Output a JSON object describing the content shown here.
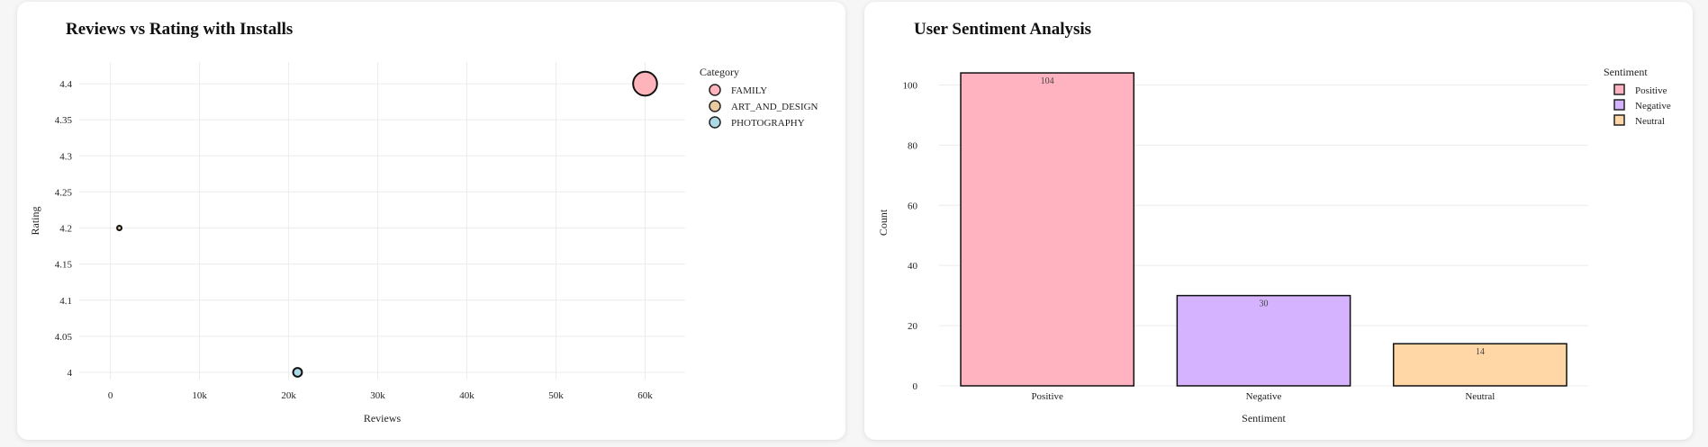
{
  "chart_data": [
    {
      "type": "scatter",
      "title": "Reviews vs Rating with Installs",
      "xlabel": "Reviews",
      "ylabel": "Rating",
      "xlim": [
        -3500,
        64500
      ],
      "ylim": [
        3.99,
        4.43
      ],
      "xticks": [
        0,
        10000,
        20000,
        30000,
        40000,
        50000,
        60000
      ],
      "xtick_labels": [
        "0",
        "10k",
        "20k",
        "30k",
        "40k",
        "50k",
        "60k"
      ],
      "yticks": [
        4,
        4.05,
        4.1,
        4.15,
        4.2,
        4.25,
        4.3,
        4.35,
        4.4
      ],
      "ytick_labels": [
        "4",
        "4.05",
        "4.1",
        "4.15",
        "4.2",
        "4.25",
        "4.3",
        "4.35",
        "4.4"
      ],
      "grid": true,
      "legend_title": "Category",
      "legend_position": "right",
      "series": [
        {
          "name": "FAMILY",
          "color": "#ffb3ba",
          "points": [
            {
              "x": 60000,
              "y": 4.4,
              "size": 10
            }
          ]
        },
        {
          "name": "ART_AND_DESIGN",
          "color": "#e9c9a0",
          "points": [
            {
              "x": 1000,
              "y": 4.2,
              "size": 1
            }
          ]
        },
        {
          "name": "PHOTOGRAPHY",
          "color": "#add8e6",
          "points": [
            {
              "x": 21000,
              "y": 4.0,
              "size": 3
            }
          ]
        }
      ]
    },
    {
      "type": "bar",
      "title": "User Sentiment Analysis",
      "xlabel": "Sentiment",
      "ylabel": "Count",
      "categories": [
        "Positive",
        "Negative",
        "Neutral"
      ],
      "values": [
        104,
        30,
        14
      ],
      "colors": [
        "#ffb3c1",
        "#d6b3ff",
        "#ffd6a5"
      ],
      "ylim": [
        0,
        108.5
      ],
      "yticks": [
        0,
        20,
        40,
        60,
        80,
        100
      ],
      "grid": true,
      "legend_title": "Sentiment",
      "legend_position": "right"
    }
  ]
}
